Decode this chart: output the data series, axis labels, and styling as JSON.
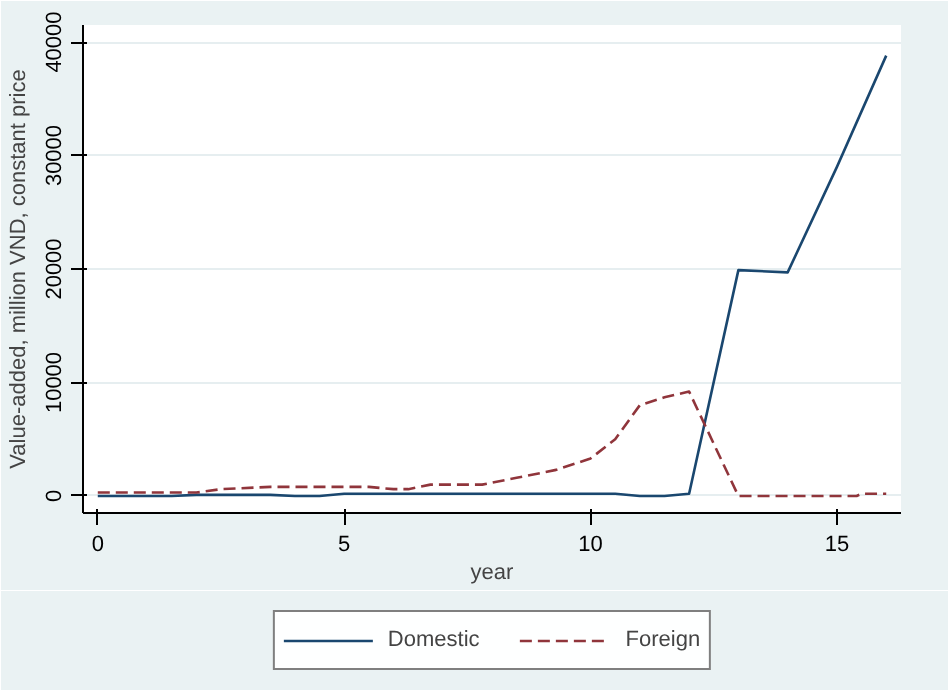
{
  "chart_data": {
    "type": "line",
    "xlabel": "year",
    "ylabel": "Value-added, million VND, constant price",
    "xlim": [
      -0.3,
      16.3
    ],
    "xticks": [
      0,
      5,
      10,
      15
    ],
    "ylim": [
      -1500,
      41500
    ],
    "yticks": [
      0,
      10000,
      20000,
      30000,
      40000
    ],
    "grid": "y",
    "legend": "bottom",
    "series": [
      {
        "name": "Domestic",
        "color": "#1a476f",
        "line_style": "solid",
        "x": [
          0,
          1.5,
          2,
          3.5,
          4,
          4.5,
          5,
          10.5,
          11,
          11.5,
          12,
          13,
          14,
          15,
          16
        ],
        "values": [
          0,
          0,
          100,
          100,
          0,
          0,
          200,
          200,
          0,
          0,
          200,
          19900,
          19700,
          29000,
          38800
        ]
      },
      {
        "name": "Foreign",
        "color": "#90353b",
        "line_style": "dashed",
        "x": [
          0,
          1.5,
          2,
          2.5,
          3.5,
          5.5,
          6,
          6.3,
          6.75,
          7.8,
          8.5,
          9.3,
          10,
          10.5,
          11,
          11.5,
          12,
          13,
          15.4,
          15.5,
          16
        ],
        "values": [
          300,
          300,
          300,
          600,
          800,
          800,
          600,
          600,
          1000,
          1000,
          1600,
          2300,
          3300,
          5000,
          8000,
          8700,
          9200,
          0,
          0,
          200,
          200
        ]
      }
    ]
  }
}
